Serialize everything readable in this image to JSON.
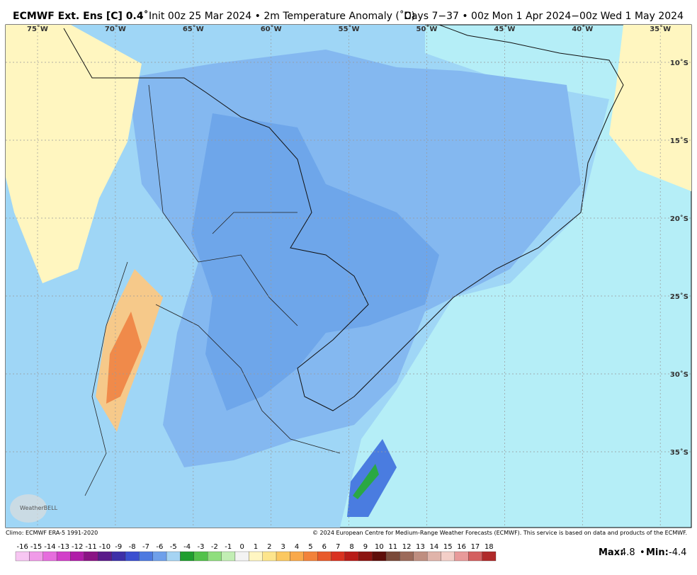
{
  "header": {
    "title": "ECMWF Ext. Ens [C] 0.4˚",
    "subtitle": "Init 00z 25 Mar 2024 • 2m Temperature Anomaly (˚C)",
    "period": "Days 7−37 • 00z Mon 1 Apr 2024−00z Wed 1 May 2024"
  },
  "map": {
    "lon_labels": [
      "75˚W",
      "70˚W",
      "65˚W",
      "60˚W",
      "55˚W",
      "50˚W",
      "45˚W",
      "40˚W",
      "35˚W"
    ],
    "lat_labels": [
      "10˚S",
      "15˚S",
      "20˚S",
      "25˚S",
      "30˚S",
      "35˚S"
    ],
    "logo": "WeatherBELL"
  },
  "footer": {
    "climo": "Climo: ECMWF ERA-5 1991-2020",
    "copyright": "© 2024 European Centre for Medium-Range Weather Forecasts (ECMWF). This service is based on data and products of the ECMWF."
  },
  "colorbar": {
    "labels": [
      -16,
      -15,
      -14,
      -13,
      -12,
      -11,
      -10,
      -9,
      -8,
      -7,
      -6,
      -5,
      -4,
      -3,
      -2,
      -1,
      0,
      1,
      2,
      3,
      4,
      5,
      6,
      7,
      8,
      9,
      10,
      11,
      12,
      13,
      14,
      15,
      16,
      17,
      18
    ],
    "colors": [
      "#f7c6f2",
      "#f09be8",
      "#e66ddd",
      "#d23fc9",
      "#b01ea8",
      "#8a1484",
      "#5a1a8a",
      "#3d2fa8",
      "#3a4fd0",
      "#4d7ae0",
      "#6fa0ea",
      "#a6d4f3",
      "#1f9e2e",
      "#52c24a",
      "#8fde7d",
      "#c2eeb4",
      "#f3f3f3",
      "#fff6c2",
      "#fde58c",
      "#fbc860",
      "#f9a94a",
      "#f2823a",
      "#e85a2a",
      "#d93220",
      "#b81c18",
      "#8c1410",
      "#5e0e0a",
      "#7a4a3a",
      "#9c6a5a",
      "#bf8e80",
      "#e0b4aa",
      "#f3cfc8",
      "#e89a9a",
      "#d46060",
      "#b02a2a"
    ],
    "max_label": "Max:",
    "max": 4.8,
    "sep": "•",
    "min_label": "Min:",
    "min": -4.4
  }
}
